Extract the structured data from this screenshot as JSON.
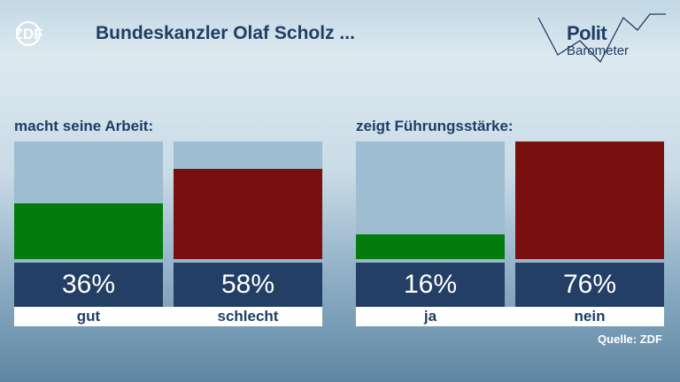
{
  "header": {
    "broadcaster": "ZDF",
    "title": "Bundeskanzler Olaf Scholz ...",
    "logo_line1": "Polit",
    "logo_line2": "Barometer"
  },
  "chart_data": [
    {
      "type": "bar",
      "title": "macht seine Arbeit:",
      "categories": [
        "gut",
        "schlecht"
      ],
      "values": [
        36,
        58
      ],
      "value_labels": [
        "36%",
        "58%"
      ],
      "colors": [
        "#047c0d",
        "#7a0f0f"
      ],
      "ylim": [
        0,
        76
      ]
    },
    {
      "type": "bar",
      "title": "zeigt Führungsstärke:",
      "categories": [
        "ja",
        "nein"
      ],
      "values": [
        16,
        76
      ],
      "value_labels": [
        "16%",
        "76%"
      ],
      "colors": [
        "#047c0d",
        "#7a0f0f"
      ],
      "ylim": [
        0,
        76
      ]
    }
  ],
  "footer": {
    "source": "Quelle: ZDF"
  }
}
